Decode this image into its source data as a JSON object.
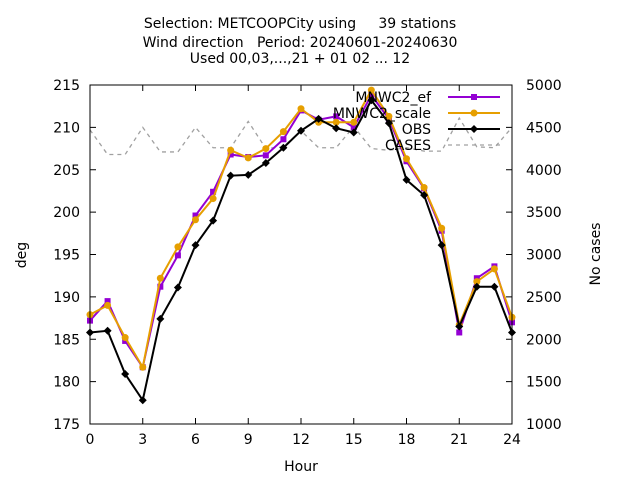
{
  "title_lines": [
    "Selection: METCOOPCity using     39 stations",
    "Wind direction   Period: 20240601-20240630",
    "Used 00,03,...,21 + 01 02 ... 12"
  ],
  "chart_data": {
    "type": "line",
    "xlabel": "Hour",
    "ylabel": "deg",
    "y2label": "No cases",
    "xlim": [
      0,
      24
    ],
    "ylim": [
      175,
      215
    ],
    "y2lim": [
      1000,
      5000
    ],
    "xticks": [
      "0",
      "3",
      "6",
      "9",
      "12",
      "15",
      "18",
      "21",
      "24"
    ],
    "yticks": [
      "175",
      "180",
      "185",
      "190",
      "195",
      "200",
      "205",
      "210",
      "215"
    ],
    "y2ticks": [
      "1000",
      "1500",
      "2000",
      "2500",
      "3000",
      "3500",
      "4000",
      "4500",
      "5000"
    ],
    "x": [
      0,
      1,
      2,
      3,
      4,
      5,
      6,
      7,
      8,
      9,
      10,
      11,
      12,
      13,
      14,
      15,
      16,
      17,
      18,
      19,
      20,
      21,
      22,
      23,
      24
    ],
    "series": [
      {
        "name": "MNWC2_ef",
        "color": "#9400d3",
        "marker": "square",
        "values": [
          187.2,
          189.5,
          184.8,
          181.7,
          191.2,
          194.9,
          199.6,
          202.4,
          206.8,
          206.5,
          206.7,
          208.6,
          212.0,
          210.9,
          211.3,
          210.0,
          213.8,
          211.0,
          206.0,
          202.8,
          197.8,
          185.8,
          192.2,
          193.6,
          187.0
        ]
      },
      {
        "name": "MNWC2_scale",
        "color": "#e69f00",
        "marker": "circle",
        "values": [
          187.9,
          189.0,
          185.2,
          181.7,
          192.2,
          195.9,
          199.1,
          201.6,
          207.3,
          206.4,
          207.5,
          209.5,
          212.2,
          210.6,
          210.6,
          210.6,
          214.4,
          211.3,
          206.3,
          202.9,
          198.1,
          186.7,
          191.8,
          193.3,
          187.6
        ]
      },
      {
        "name": "OBS",
        "color": "#000000",
        "marker": "diamond",
        "values": [
          185.8,
          186.0,
          180.9,
          177.8,
          187.4,
          191.1,
          196.1,
          199.0,
          204.3,
          204.4,
          205.8,
          207.6,
          209.6,
          211.0,
          209.9,
          209.4,
          213.2,
          210.5,
          203.8,
          202.0,
          196.1,
          186.5,
          191.2,
          191.2,
          185.8
        ]
      },
      {
        "name": "CASES",
        "color": "#a0a0a0",
        "axis": "right",
        "dashed": true,
        "values": [
          4470,
          4180,
          4180,
          4500,
          4210,
          4210,
          4500,
          4260,
          4260,
          4570,
          4250,
          4270,
          4460,
          4260,
          4260,
          4510,
          4250,
          4230,
          4260,
          4220,
          4220,
          4610,
          4270,
          4260,
          4500
        ]
      }
    ]
  }
}
